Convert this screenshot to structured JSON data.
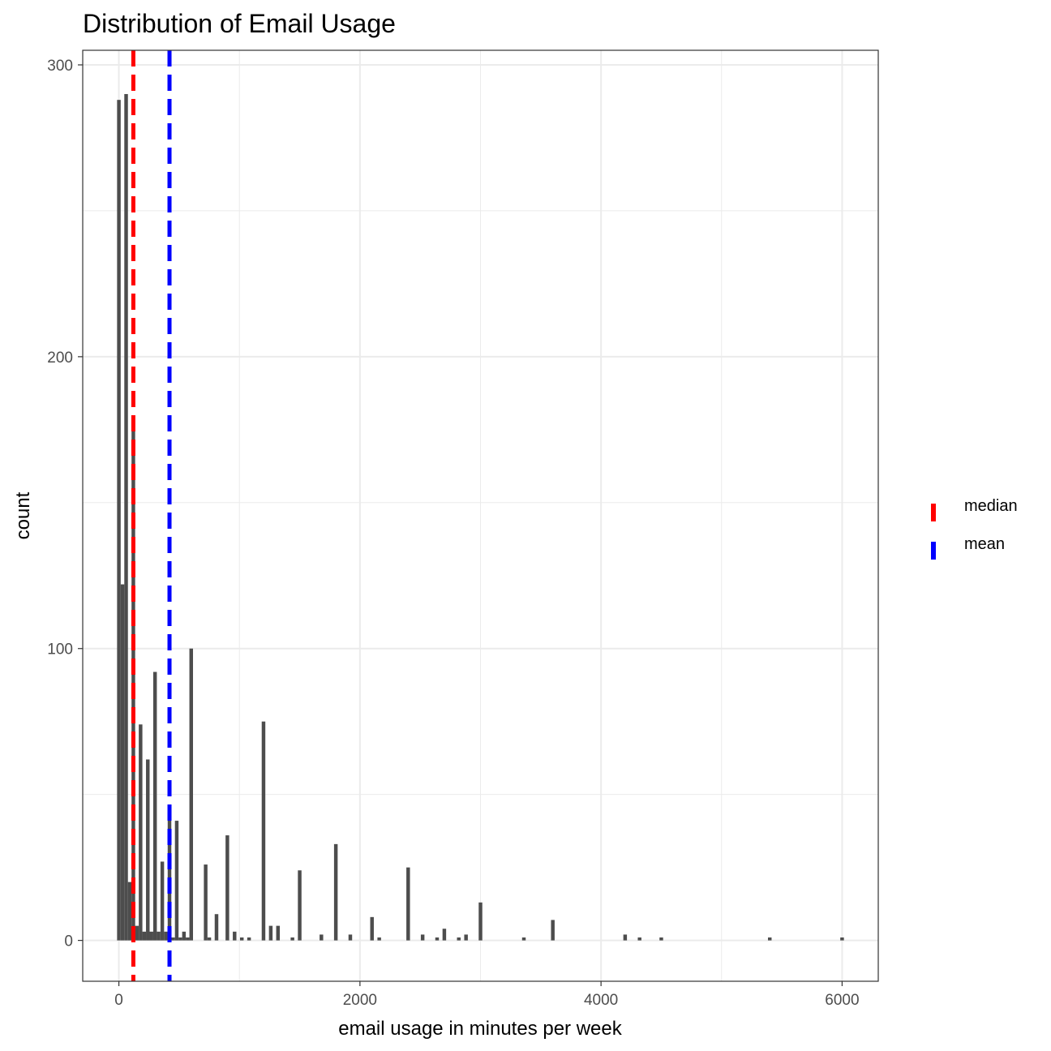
{
  "chart_data": {
    "type": "bar",
    "title": "Distribution of Email Usage",
    "xlabel": "email usage in minutes per week",
    "ylabel": "count",
    "xlim": [
      -300,
      6300
    ],
    "ylim": [
      -14,
      305
    ],
    "x_ticks": [
      0,
      2000,
      4000,
      6000
    ],
    "y_ticks": [
      0,
      100,
      200,
      300
    ],
    "bin_width": 30,
    "grid": true,
    "bar_color": "#4d4d4d",
    "x": [
      0,
      30,
      60,
      90,
      120,
      150,
      180,
      210,
      240,
      270,
      300,
      330,
      360,
      390,
      420,
      450,
      480,
      510,
      540,
      570,
      600,
      720,
      750,
      810,
      900,
      960,
      1020,
      1080,
      1200,
      1260,
      1320,
      1440,
      1500,
      1680,
      1800,
      1920,
      2100,
      2160,
      2400,
      2520,
      2640,
      2700,
      2820,
      2880,
      3000,
      3360,
      3600,
      4200,
      4320,
      4500,
      5400,
      6000
    ],
    "values": [
      288,
      122,
      290,
      20,
      175,
      5,
      74,
      3,
      62,
      3,
      92,
      3,
      27,
      3,
      44,
      1,
      41,
      1,
      3,
      1,
      100,
      26,
      1,
      9,
      36,
      3,
      1,
      1,
      75,
      5,
      5,
      1,
      24,
      2,
      33,
      2,
      8,
      1,
      25,
      2,
      1,
      4,
      1,
      2,
      13,
      1,
      7,
      2,
      1,
      1,
      1,
      1
    ],
    "reference_lines": [
      {
        "name": "median",
        "value": 120,
        "color": "#ff0000"
      },
      {
        "name": "mean",
        "value": 420,
        "color": "#0000ff"
      }
    ],
    "legend_placement": "right"
  }
}
